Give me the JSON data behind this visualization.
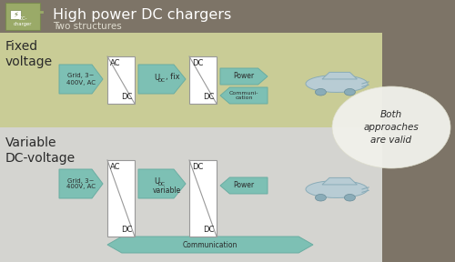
{
  "title": "High power DC chargers",
  "subtitle": "Two structures",
  "header_bg": "#7d7467",
  "top_section_bg": "#c9cc96",
  "bottom_section_bg": "#d4d4d0",
  "arrow_color": "#7dc0b4",
  "arrow_edge_color": "#6aada2",
  "text_dark": "#2a2a2a",
  "fixed_label": "Fixed\nvoltage",
  "variable_label": "Variable\nDC-voltage",
  "grid_text": "Grid, 3~\n400V, AC",
  "udc_fix_text": "U_DC, fix",
  "udc_var_text": "U_DC\nvariable",
  "power_text": "Power",
  "comm_text": "Communi-\ncation",
  "comm2_text": "Communication",
  "both_text": "Both\napproaches\nare valid",
  "car_color": "#b8ccd4",
  "bubble_color": "#f0f0ea"
}
